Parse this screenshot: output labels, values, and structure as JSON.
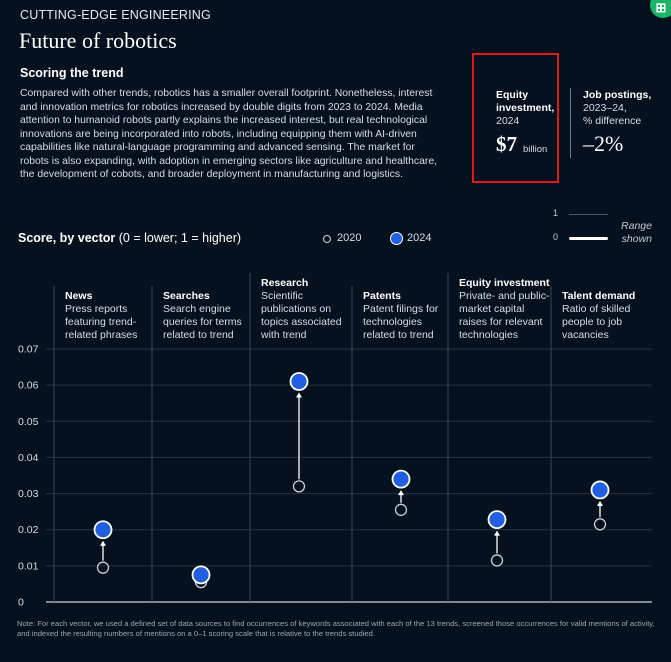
{
  "header": {
    "eyebrow": "CUTTING-EDGE ENGINEERING",
    "title": "Future of robotics",
    "subtitle": "Scoring the trend",
    "body": "Compared with other trends, robotics has a smaller overall footprint. Nonetheless, interest and innovation metrics for robotics increased by double digits from 2023 to 2024. Media attention to humanoid robots partly explains the increased interest, but real technological innovations are being incorporated into robots, including equipping them with AI-driven capabilities like natural-language programming and advanced sensing. The market for robots is also expanding, with adoption in emerging sectors like agriculture and healthcare, the development of cobots, and broader deployment in manufacturing and logistics."
  },
  "kpis": {
    "equity": {
      "label": "Equity investment,",
      "year": "2024",
      "value": "$7",
      "unit": "billion"
    },
    "jobs": {
      "label": "Job postings,",
      "sub1": "2023–24,",
      "sub2": "% difference",
      "value": "–2%"
    }
  },
  "range_legend": {
    "top": "1",
    "bottom": "0",
    "label1": "Range",
    "label2": "shown"
  },
  "score_title_bold": "Score, by vector",
  "score_title_rest": " (0 = lower; 1 = higher)",
  "legend": {
    "y2020": "2020",
    "y2024": "2024"
  },
  "footnote": "Note: For each vector, we used a defined set of data sources to find occurrences of keywords associated with each of the 13 trends, screened those occurrences for valid mentions of activity, and indexed the resulting numbers of mentions on a 0–1 scoring scale that is relative to the trends studied.",
  "colors": {
    "background": "#06111f",
    "dot2024": "#1f5fe0",
    "highlight": "#e01a1a"
  },
  "icons": {
    "corner": "grid-badge-icon"
  },
  "chart_data": {
    "type": "scatter",
    "ylim": [
      0,
      0.07
    ],
    "yticks": [
      "0",
      "0.01",
      "0.02",
      "0.03",
      "0.04",
      "0.05",
      "0.06",
      "0.07"
    ],
    "categories": [
      "News",
      "Searches",
      "Research",
      "Patents",
      "Equity investment",
      "Talent demand"
    ],
    "descriptions": [
      [
        "Press reports",
        "featuring trend-",
        "related phrases"
      ],
      [
        "Search engine",
        "queries for terms",
        "related to trend"
      ],
      [
        "Scientific",
        "publications on",
        "topics associated",
        "with trend"
      ],
      [
        "Patent filings for",
        "technologies",
        "related to trend"
      ],
      [
        "Private- and public-",
        "market capital",
        "raises for relevant",
        "technologies"
      ],
      [
        "Ratio of skilled",
        "people to job",
        "vacancies"
      ]
    ],
    "series": [
      {
        "name": "2020",
        "values": [
          0.0095,
          0.0055,
          0.032,
          0.0255,
          0.0115,
          0.0215
        ]
      },
      {
        "name": "2024",
        "values": [
          0.02,
          0.0075,
          0.061,
          0.034,
          0.0228,
          0.031
        ]
      }
    ]
  }
}
